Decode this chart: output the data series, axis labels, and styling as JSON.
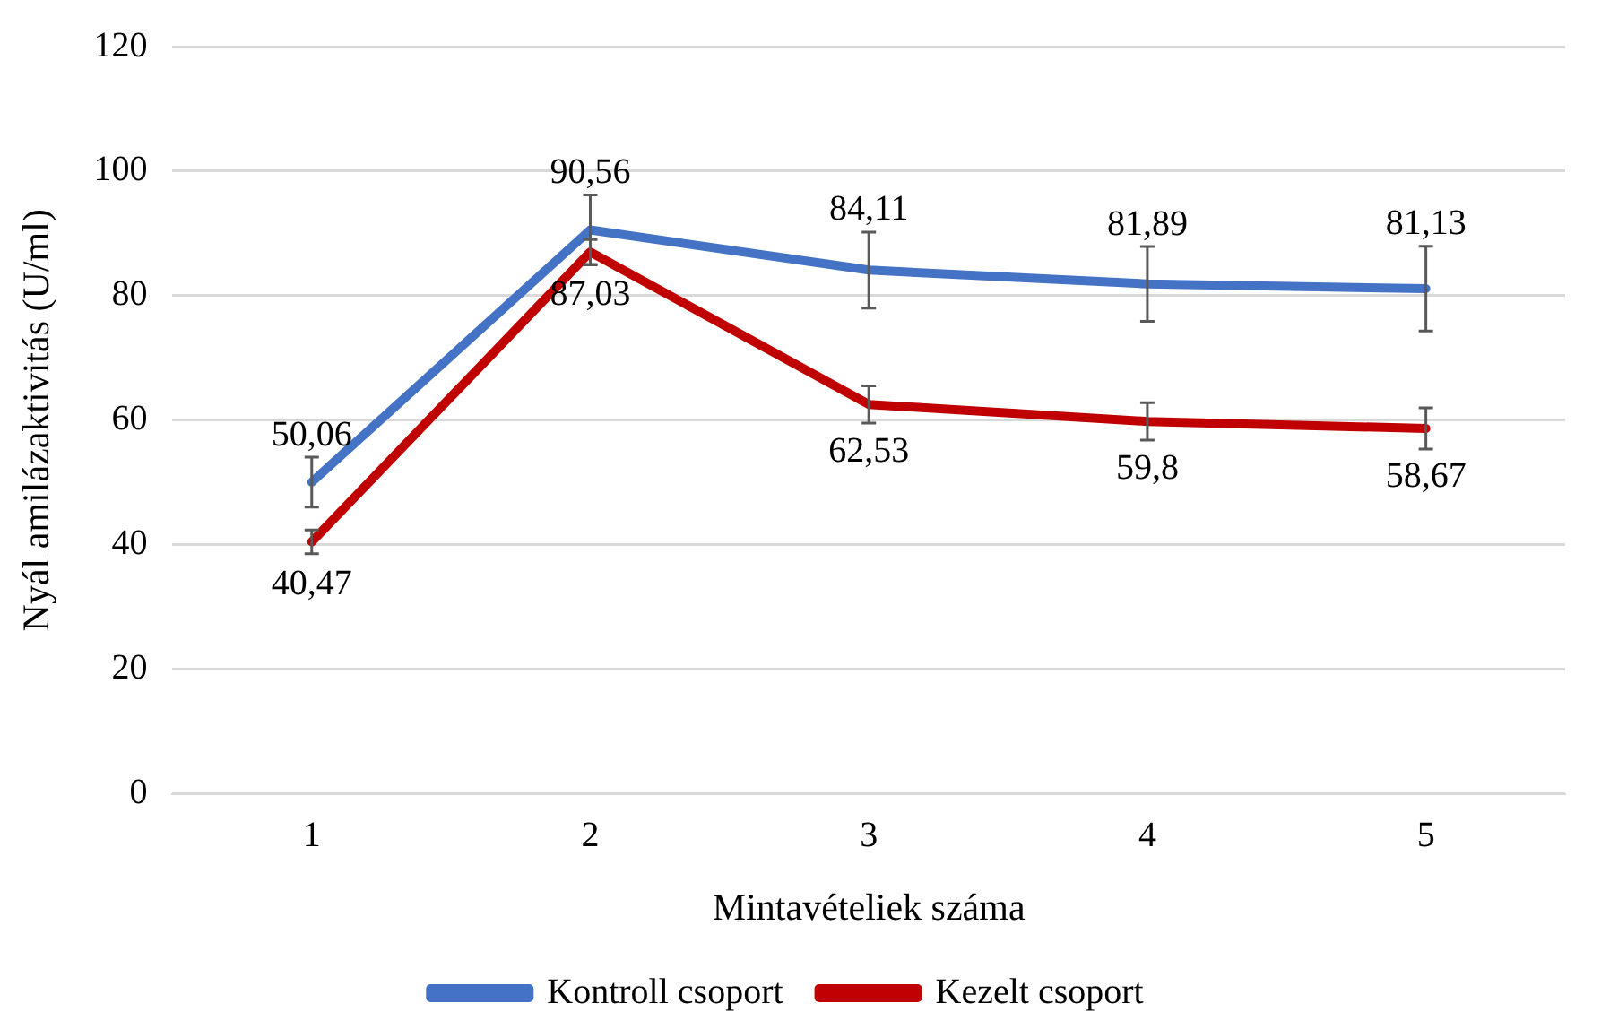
{
  "chart_data": {
    "type": "line",
    "xlabel": "Mintavételiek száma",
    "ylabel": "Nyál amilázaktivitás (U/ml)",
    "categories": [
      "1",
      "2",
      "3",
      "4",
      "5"
    ],
    "series": [
      {
        "name": "Kontroll csoport",
        "color": "#4472c4",
        "values": [
          50.06,
          90.56,
          84.11,
          81.89,
          81.13
        ],
        "value_labels": [
          "50,06",
          "90,56",
          "84,11",
          "81,89",
          "81,13"
        ],
        "errors": [
          4,
          5.6,
          6.1,
          6,
          6.8
        ]
      },
      {
        "name": "Kezelt csoport",
        "color": "#c00000",
        "values": [
          40.47,
          87.03,
          62.53,
          59.8,
          58.67
        ],
        "value_labels": [
          "40,47",
          "87,03",
          "62,53",
          "59,8",
          "58,67"
        ],
        "errors": [
          1.9,
          2,
          3,
          3,
          3.3
        ]
      }
    ],
    "ylim": [
      0,
      120
    ],
    "yticks": [
      0,
      20,
      40,
      60,
      80,
      100,
      120
    ],
    "grid": "y",
    "legend": "bottom",
    "marker": "none",
    "line_style": "solid"
  }
}
